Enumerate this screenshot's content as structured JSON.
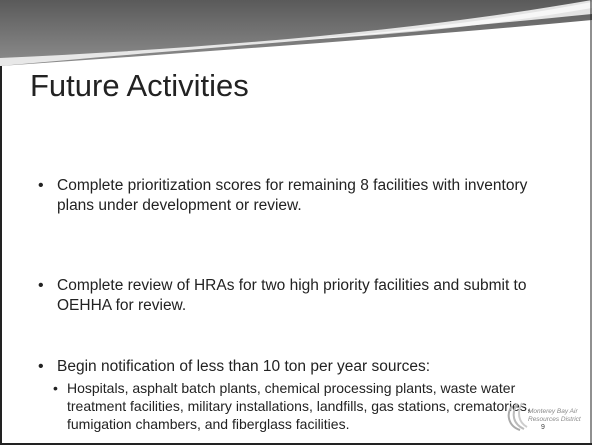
{
  "title": "Future Activities",
  "bullets": [
    {
      "text": "Complete prioritization scores for remaining 8 facilities with inventory plans under development or review."
    },
    {
      "text": "Complete review of HRAs for two high priority facilities and submit to OEHHA for review."
    },
    {
      "text": "Begin notification of less than 10 ton per year sources:",
      "sub": [
        "Hospitals, asphalt batch plants, chemical processing plants, waste water treatment facilities, military installations, landfills, gas stations, crematories, fumigation chambers, and fiberglass facilities."
      ]
    }
  ],
  "logo": {
    "line1": "Monterey Bay Air",
    "line2": "Resources District"
  },
  "page_number": "9"
}
